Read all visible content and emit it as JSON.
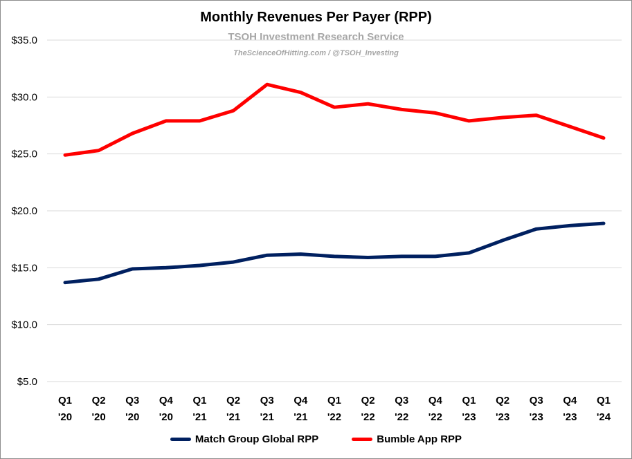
{
  "chart_data": {
    "type": "line",
    "title": "Monthly Revenues Per Payer (RPP)",
    "subtitle": "TSOH Investment Research Service",
    "credit": "TheScienceOfHitting.com / @TSOH_Investing",
    "categories": [
      [
        "Q1",
        "'20"
      ],
      [
        "Q2",
        "'20"
      ],
      [
        "Q3",
        "'20"
      ],
      [
        "Q4",
        "'20"
      ],
      [
        "Q1",
        "'21"
      ],
      [
        "Q2",
        "'21"
      ],
      [
        "Q3",
        "'21"
      ],
      [
        "Q4",
        "'21"
      ],
      [
        "Q1",
        "'22"
      ],
      [
        "Q2",
        "'22"
      ],
      [
        "Q3",
        "'22"
      ],
      [
        "Q4",
        "'22"
      ],
      [
        "Q1",
        "'23"
      ],
      [
        "Q2",
        "'23"
      ],
      [
        "Q3",
        "'23"
      ],
      [
        "Q4",
        "'23"
      ],
      [
        "Q1",
        "'24"
      ]
    ],
    "ylim": [
      5,
      35
    ],
    "yticks": [
      5,
      10,
      15,
      20,
      25,
      30,
      35
    ],
    "ytick_labels": [
      "$5.0",
      "$10.0",
      "$15.0",
      "$20.0",
      "$25.0",
      "$30.0",
      "$35.0"
    ],
    "grid": true,
    "legend_position": "bottom",
    "series": [
      {
        "name": "Match Group Global RPP",
        "color": "#002060",
        "values": [
          13.7,
          14.0,
          14.9,
          15.0,
          15.2,
          15.5,
          16.1,
          16.2,
          16.0,
          15.9,
          16.0,
          16.0,
          16.3,
          17.4,
          18.4,
          18.7,
          18.9
        ]
      },
      {
        "name": "Bumble App RPP",
        "color": "#ff0000",
        "values": [
          24.9,
          25.3,
          26.8,
          27.9,
          27.9,
          28.8,
          31.1,
          30.4,
          29.1,
          29.4,
          28.9,
          28.6,
          27.9,
          28.2,
          28.4,
          27.4,
          26.4
        ]
      }
    ]
  }
}
